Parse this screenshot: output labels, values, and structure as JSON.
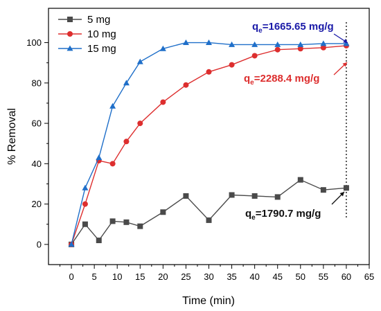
{
  "chart_data": {
    "type": "line",
    "xlabel": "Time (min)",
    "ylabel": "% Removal",
    "xlim": [
      -5,
      65
    ],
    "ylim": [
      -10,
      117
    ],
    "x_ticks": [
      "0",
      "5",
      "10",
      "15",
      "20",
      "25",
      "30",
      "35",
      "40",
      "45",
      "50",
      "55",
      "60",
      "65"
    ],
    "y_ticks": [
      "0",
      "20",
      "40",
      "60",
      "80",
      "100"
    ],
    "grid": false,
    "legend_position": "top-left",
    "series": [
      {
        "name": "5 mg",
        "color": "#4a4a4a",
        "marker": "square",
        "x": [
          0,
          3,
          6,
          9,
          12,
          15,
          20,
          25,
          30,
          35,
          40,
          45,
          50,
          55,
          60
        ],
        "y": [
          0,
          10,
          2,
          11.5,
          11,
          9,
          16,
          24,
          12,
          24.5,
          24,
          23.5,
          32,
          27,
          28
        ]
      },
      {
        "name": "10 mg",
        "color": "#dd2e2e",
        "marker": "circle",
        "x": [
          0,
          3,
          6,
          9,
          12,
          15,
          20,
          25,
          30,
          35,
          40,
          45,
          50,
          55,
          60
        ],
        "y": [
          0,
          20,
          41.5,
          40,
          51,
          60,
          70.5,
          79,
          85.5,
          89,
          93.5,
          96.5,
          97,
          97.5,
          98.5
        ]
      },
      {
        "name": "15 mg",
        "color": "#1f6fc9",
        "marker": "triangle",
        "x": [
          0,
          3,
          6,
          9,
          12,
          15,
          20,
          25,
          30,
          35,
          40,
          45,
          50,
          55,
          60
        ],
        "y": [
          0,
          28,
          43,
          68.5,
          80,
          90.5,
          97,
          100,
          100,
          99,
          99,
          99,
          99,
          99.5,
          99.5
        ]
      }
    ],
    "reference_line": {
      "x": 60,
      "style": "dotted"
    },
    "annotations": [
      {
        "prefix": "q",
        "sub": "e",
        "value": "=1665.65 mg/g",
        "color": "#1a1aa8",
        "point": [
          60,
          99.5
        ]
      },
      {
        "prefix": "q",
        "sub": "e",
        "value": "=2288.4 mg/g",
        "color": "#dd2e2e",
        "point": [
          60,
          98.5
        ]
      },
      {
        "prefix": "q",
        "sub": "e",
        "value": "=1790.7 mg/g",
        "color": "#111111",
        "point": [
          60,
          28
        ]
      }
    ]
  }
}
